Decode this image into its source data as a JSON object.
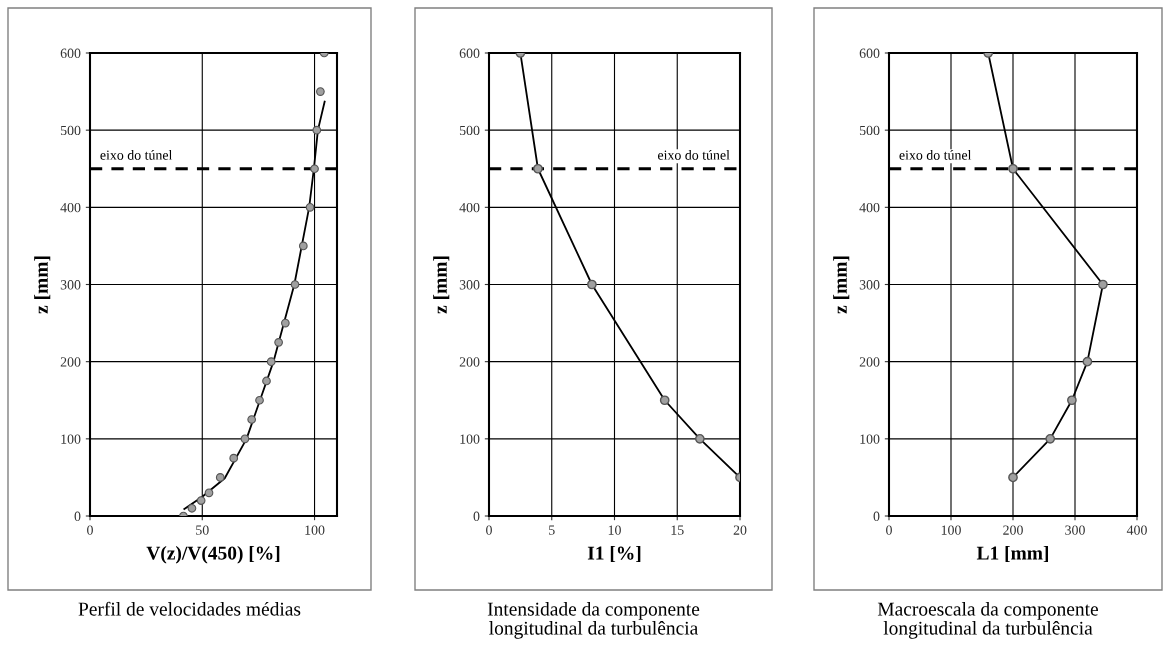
{
  "chart_data": [
    {
      "type": "scatter",
      "xlabel": "V(z)/V(450) [%]",
      "ylabel": "z [mm]",
      "annotations": [
        "Perfil de velocidades médias"
      ],
      "xlim": [
        0,
        110
      ],
      "xticks": [
        0,
        50,
        100
      ],
      "ylim": [
        0,
        600
      ],
      "yticks": [
        0,
        100,
        200,
        300,
        400,
        500,
        600
      ],
      "grid": true,
      "marker": "circle",
      "series": [
        {
          "color": "#a0a0a0",
          "x": [
            41.6,
            45.4,
            49.5,
            53,
            58,
            64,
            69,
            72,
            75.5,
            78.6,
            80.7,
            84,
            87,
            91.3,
            95,
            98,
            100,
            101,
            102.6,
            104.3
          ],
          "values": [
            0,
            10,
            20,
            30,
            50,
            75,
            100,
            125,
            150,
            175,
            200,
            225,
            250,
            300,
            350,
            400,
            450,
            500,
            550,
            600
          ]
        },
        {
          "type": "line",
          "color": "#000000",
          "marker": "none",
          "x": [
            42,
            50,
            60,
            69.7,
            81.7,
            91,
            97.6,
            99.7,
            101.5,
            104.5
          ],
          "values": [
            9,
            25,
            49,
            100,
            200,
            300,
            400,
            450,
            500,
            537
          ]
        }
      ],
      "ref_lines": [
        {
          "axis": "y",
          "value": 450,
          "label": "eixo do túnel",
          "color": "#000000",
          "line_style": "dashed"
        }
      ]
    },
    {
      "type": "line",
      "xlabel": "I1 [%]",
      "ylabel": "z [mm]",
      "annotations": [
        "Intensidade da componente\nlongitudinal da turbulência"
      ],
      "xlim": [
        0,
        20
      ],
      "xticks": [
        0,
        5,
        10,
        15,
        20
      ],
      "ylim": [
        0,
        600
      ],
      "yticks": [
        0,
        100,
        200,
        300,
        400,
        500,
        600
      ],
      "grid": true,
      "marker": "circle",
      "series": [
        {
          "color": "#000000",
          "x": [
            2.5,
            3.9,
            8.2,
            14,
            16.8,
            20
          ],
          "values": [
            600,
            450,
            300,
            150,
            100,
            50
          ]
        }
      ],
      "ref_lines": [
        {
          "axis": "y",
          "value": 450,
          "label": "eixo do túnel",
          "color": "#000000",
          "line_style": "dashed"
        }
      ]
    },
    {
      "type": "line",
      "xlabel": "L1 [mm]",
      "ylabel": "z [mm]",
      "annotations": [
        "Macroescala da componente\nlongitudinal da turbulência"
      ],
      "xlim": [
        0,
        400
      ],
      "xticks": [
        0,
        100,
        200,
        300,
        400
      ],
      "ylim": [
        0,
        600
      ],
      "yticks": [
        0,
        100,
        200,
        300,
        400,
        500,
        600
      ],
      "grid": true,
      "marker": "circle",
      "series": [
        {
          "color": "#000000",
          "x": [
            160,
            200,
            345,
            320,
            295,
            260,
            200
          ],
          "values": [
            600,
            450,
            300,
            200,
            150,
            100,
            50
          ]
        }
      ],
      "ref_lines": [
        {
          "axis": "y",
          "value": 450,
          "label": "eixo do túnel",
          "color": "#000000",
          "line_style": "dashed"
        }
      ]
    }
  ]
}
